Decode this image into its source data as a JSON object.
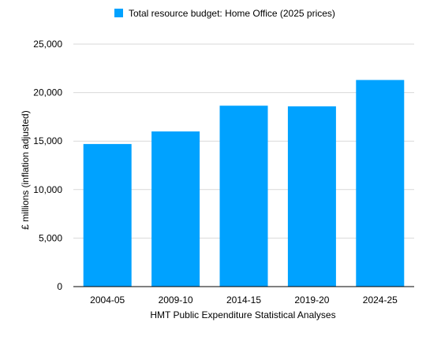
{
  "chart_data": {
    "type": "bar",
    "categories": [
      "2004-05",
      "2009-10",
      "2014-15",
      "2019-20",
      "2024-25"
    ],
    "series": [
      {
        "name": "Total resource budget: Home Office (2025 prices)",
        "values": [
          14700,
          16000,
          18650,
          18580,
          21300
        ],
        "color": "#00a2ff"
      }
    ],
    "title": "",
    "xlabel": "HMT Public Expenditure Statistical Analyses",
    "ylabel": "£ millions (inflation adjusted)",
    "ylim": [
      0,
      25000
    ],
    "yticks": [
      "0",
      "5,000",
      "10,000",
      "15,000",
      "20,000",
      "25,000"
    ],
    "ytick_values": [
      0,
      5000,
      10000,
      15000,
      20000,
      25000
    ],
    "grid": true,
    "legend_position": "top-center"
  }
}
